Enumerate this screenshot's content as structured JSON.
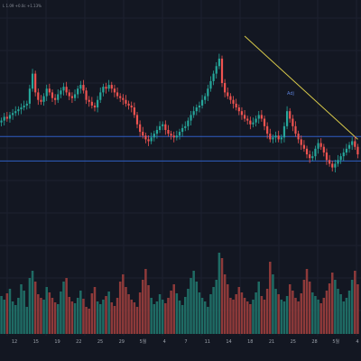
{
  "chart_data": {
    "type": "candlestick",
    "header_text": "L 1.09  +0.0c +1.13%",
    "annotation": "Adj",
    "x_ticks": [
      "12",
      "15",
      "19",
      "22",
      "25",
      "29",
      "5월",
      "4",
      "7",
      "11",
      "14",
      "18",
      "21",
      "25",
      "28",
      "5월",
      "4"
    ],
    "ylim": [
      0,
      100
    ],
    "grid": true,
    "close": [
      55,
      57,
      56,
      58,
      59,
      60,
      61,
      62,
      63,
      64,
      72,
      80,
      70,
      66,
      65,
      68,
      72,
      70,
      67,
      66,
      69,
      71,
      73,
      70,
      68,
      67,
      69,
      72,
      74,
      71,
      66,
      65,
      63,
      62,
      66,
      70,
      73,
      72,
      74,
      72,
      70,
      68,
      67,
      66,
      64,
      63,
      62,
      58,
      53,
      49,
      47,
      45,
      44,
      46,
      48,
      50,
      52,
      53,
      50,
      48,
      47,
      46,
      47,
      49,
      51,
      52,
      55,
      58,
      60,
      62,
      63,
      66,
      68,
      72,
      76,
      80,
      84,
      88,
      75,
      70,
      68,
      66,
      64,
      62,
      60,
      58,
      56,
      55,
      53,
      54,
      56,
      58,
      56,
      52,
      48,
      45,
      46,
      47,
      45,
      46,
      52,
      60,
      56,
      52,
      48,
      45,
      42,
      40,
      37,
      35,
      36,
      40,
      43,
      41,
      38,
      34,
      32,
      30,
      32,
      34,
      36,
      38,
      40,
      42,
      44,
      41,
      37
    ],
    "support_levels": [
      46.5,
      33.5
    ],
    "trendline": {
      "start": [
        86,
        100
      ],
      "end": [
        126,
        45
      ]
    },
    "volume": [
      42,
      38,
      45,
      50,
      36,
      32,
      40,
      55,
      48,
      30,
      62,
      70,
      58,
      44,
      40,
      38,
      52,
      46,
      40,
      35,
      33,
      47,
      58,
      62,
      41,
      36,
      34,
      40,
      48,
      39,
      30,
      28,
      45,
      52,
      36,
      33,
      38,
      42,
      47,
      35,
      31,
      40,
      58,
      66,
      52,
      44,
      38,
      35,
      30,
      46,
      60,
      72,
      54,
      40,
      33,
      36,
      44,
      38,
      34,
      40,
      48,
      55,
      45,
      37,
      32,
      41,
      50,
      62,
      70,
      58,
      46,
      40,
      36,
      30,
      44,
      52,
      60,
      90,
      84,
      66,
      55,
      40,
      38,
      44,
      52,
      46,
      40,
      36,
      33,
      38,
      46,
      58,
      42,
      38,
      50,
      80,
      66,
      50,
      44,
      38,
      36,
      42,
      55,
      48,
      40,
      36,
      45,
      60,
      72,
      58,
      46,
      42,
      38,
      34,
      40,
      48,
      56,
      68,
      60,
      50,
      44,
      36,
      40,
      48,
      60,
      70,
      55
    ]
  }
}
